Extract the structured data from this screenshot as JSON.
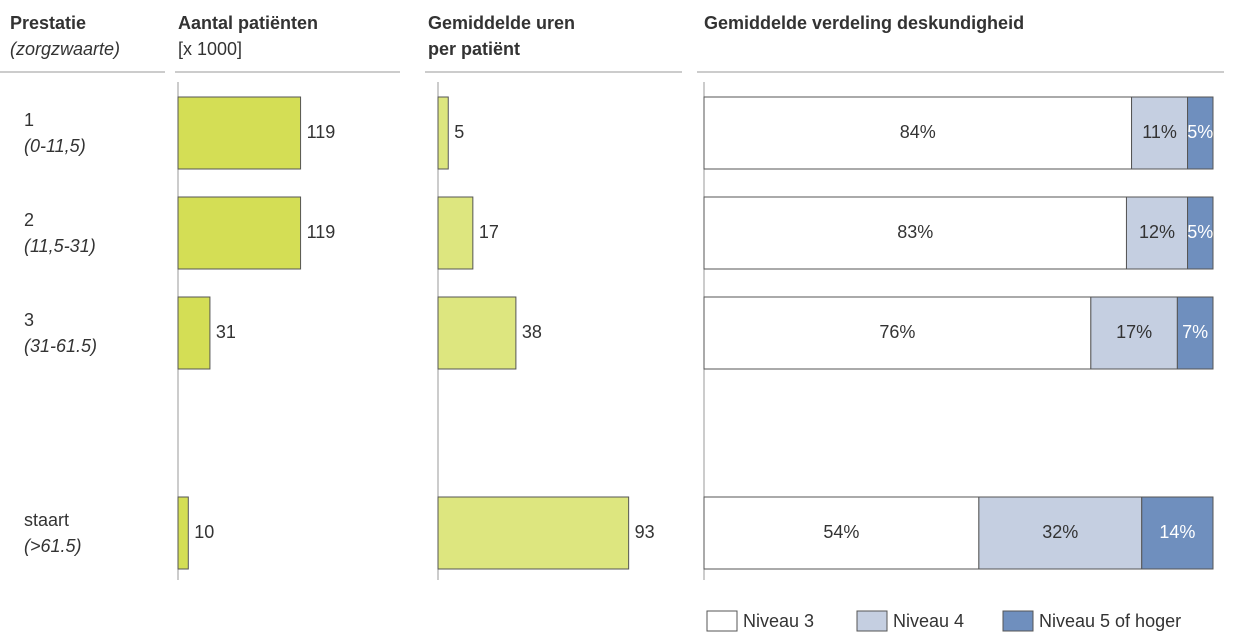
{
  "row_header": {
    "title": "Prestatie",
    "subtitle": "(zorgzwaarte)"
  },
  "rows": [
    {
      "label": "1",
      "range": "(0-11,5)"
    },
    {
      "label": "2",
      "range": "(11,5-31)"
    },
    {
      "label": "3",
      "range": "(31-61.5)"
    },
    {
      "label": "staart",
      "range": "(>61.5)"
    }
  ],
  "chart_data": [
    {
      "type": "bar",
      "orientation": "horizontal",
      "title": "Aantal patiënten",
      "subtitle": "[x 1000]",
      "values": [
        119,
        119,
        31,
        10
      ],
      "color": "#d4de55",
      "xlim": [
        0,
        200
      ]
    },
    {
      "type": "bar",
      "orientation": "horizontal",
      "title": "Gemiddelde uren per patiënt",
      "values": [
        5,
        17,
        38,
        93
      ],
      "color": "#dde67f",
      "xlim": [
        0,
        100
      ]
    },
    {
      "type": "stacked_bar",
      "orientation": "horizontal",
      "title": "Gemiddelde verdeling deskundigheid",
      "xlim": [
        0,
        100
      ],
      "legend": "bottom-right",
      "series": [
        {
          "name": "Niveau 3",
          "color": "#ffffff",
          "values": [
            84,
            83,
            76,
            54
          ],
          "value_labels": [
            "84%",
            "83%",
            "76%",
            "54%"
          ]
        },
        {
          "name": "Niveau 4",
          "color": "#c5cfe1",
          "values": [
            11,
            12,
            17,
            32
          ],
          "value_labels": [
            "11%",
            "12%",
            "17%",
            "32%"
          ]
        },
        {
          "name": "Niveau 5 of hoger",
          "color": "#6f8fbe",
          "values": [
            5,
            5,
            7,
            14
          ],
          "value_labels": [
            "5%",
            "5%",
            "7%",
            "14%"
          ]
        }
      ]
    }
  ]
}
